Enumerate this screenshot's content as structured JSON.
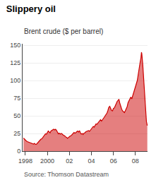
{
  "chart_data": {
    "type": "area",
    "title": "Slippery oil",
    "subtitle": "Brent crude ($ per barrel)",
    "annotations": [
      "Source: Thomson Datastream"
    ],
    "color": "#cc0000",
    "grid": true,
    "xlim": [
      1997.75,
      2009.1
    ],
    "xticks": [
      1998,
      2000,
      {
        "value": 2002,
        "label": "02"
      },
      {
        "value": 2004,
        "label": "04"
      },
      {
        "value": 2006,
        "label": "06"
      },
      {
        "value": 2008,
        "label": "08"
      }
    ],
    "ylim": [
      0,
      152
    ],
    "yticks": [
      0,
      25,
      50,
      75,
      100,
      125,
      150
    ],
    "x": [
      1997.83,
      1997.92,
      1998.0,
      1998.08,
      1998.17,
      1998.25,
      1998.33,
      1998.42,
      1998.5,
      1998.58,
      1998.67,
      1998.75,
      1998.83,
      1998.92,
      1999.0,
      1999.08,
      1999.17,
      1999.25,
      1999.33,
      1999.42,
      1999.5,
      1999.58,
      1999.67,
      1999.75,
      1999.83,
      1999.92,
      2000.0,
      2000.08,
      2000.17,
      2000.25,
      2000.33,
      2000.42,
      2000.5,
      2000.58,
      2000.67,
      2000.75,
      2000.83,
      2000.92,
      2001.0,
      2001.08,
      2001.17,
      2001.25,
      2001.33,
      2001.42,
      2001.5,
      2001.58,
      2001.67,
      2001.75,
      2001.83,
      2001.92,
      2002.0,
      2002.08,
      2002.17,
      2002.25,
      2002.33,
      2002.42,
      2002.5,
      2002.58,
      2002.67,
      2002.75,
      2002.83,
      2002.92,
      2003.0,
      2003.08,
      2003.17,
      2003.25,
      2003.33,
      2003.42,
      2003.5,
      2003.58,
      2003.67,
      2003.75,
      2003.83,
      2003.92,
      2004.0,
      2004.08,
      2004.17,
      2004.25,
      2004.33,
      2004.42,
      2004.5,
      2004.58,
      2004.67,
      2004.75,
      2004.83,
      2004.92,
      2005.0,
      2005.08,
      2005.17,
      2005.25,
      2005.33,
      2005.42,
      2005.5,
      2005.58,
      2005.67,
      2005.75,
      2005.83,
      2005.92,
      2006.0,
      2006.08,
      2006.17,
      2006.25,
      2006.33,
      2006.42,
      2006.5,
      2006.58,
      2006.67,
      2006.75,
      2006.83,
      2006.92,
      2007.0,
      2007.08,
      2007.17,
      2007.25,
      2007.33,
      2007.42,
      2007.5,
      2007.58,
      2007.67,
      2007.75,
      2007.83,
      2007.92,
      2008.0,
      2008.08,
      2008.17,
      2008.25,
      2008.33,
      2008.42,
      2008.5,
      2008.55,
      2008.58,
      2008.67,
      2008.75,
      2008.83,
      2008.92,
      2009.0,
      2009.08
    ],
    "values": [
      18.5,
      17.0,
      15.0,
      14.5,
      13.5,
      13.0,
      12.5,
      11.5,
      11.0,
      10.5,
      10.0,
      10.0,
      11.0,
      9.5,
      9.5,
      10.5,
      12.5,
      14.0,
      15.5,
      17.0,
      17.5,
      19.5,
      21.0,
      22.5,
      24.5,
      24.0,
      26.5,
      28.5,
      27.0,
      26.0,
      28.5,
      29.5,
      30.5,
      31.0,
      30.0,
      31.0,
      29.5,
      26.0,
      24.5,
      25.5,
      24.0,
      25.0,
      24.5,
      23.0,
      22.5,
      21.5,
      20.0,
      19.5,
      18.0,
      19.5,
      20.0,
      21.5,
      22.0,
      23.5,
      25.0,
      26.5,
      25.5,
      26.0,
      27.5,
      28.5,
      27.0,
      29.0,
      26.0,
      24.0,
      25.0,
      23.5,
      25.5,
      26.0,
      27.5,
      28.0,
      28.5,
      29.0,
      28.0,
      30.0,
      31.5,
      33.0,
      35.0,
      34.0,
      36.5,
      38.5,
      38.0,
      39.5,
      41.0,
      43.0,
      44.5,
      42.5,
      44.0,
      46.5,
      48.0,
      50.0,
      52.0,
      54.0,
      57.5,
      62.0,
      63.5,
      60.0,
      57.5,
      57.0,
      60.5,
      61.0,
      63.5,
      67.0,
      70.0,
      72.0,
      73.5,
      68.0,
      62.0,
      59.5,
      57.0,
      56.0,
      54.5,
      57.0,
      60.0,
      63.0,
      68.5,
      72.0,
      74.0,
      76.5,
      74.0,
      78.5,
      82.0,
      88.0,
      90.0,
      96.0,
      100.0,
      108.0,
      118.0,
      125.0,
      132.0,
      140.0,
      138.0,
      122.0,
      100.0,
      80.0,
      55.0,
      42.0,
      36.0
    ]
  }
}
